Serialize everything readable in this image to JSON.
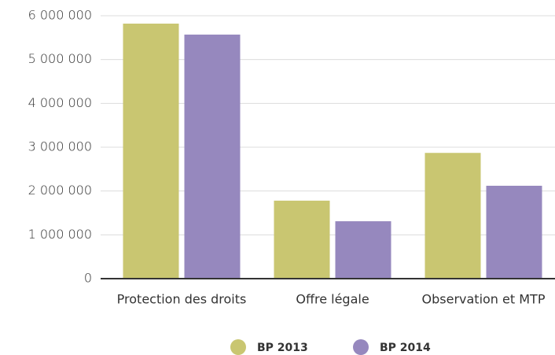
{
  "chart_data": {
    "type": "bar",
    "categories": [
      "Protection des droits",
      "Offre légale",
      "Observation et MTP"
    ],
    "series": [
      {
        "name": "BP 2013",
        "color": "#c9c671",
        "values": [
          5820000,
          1780000,
          2870000
        ]
      },
      {
        "name": "BP 2014",
        "color": "#9688be",
        "values": [
          5570000,
          1310000,
          2120000
        ]
      }
    ],
    "ylim": [
      0,
      6000000
    ],
    "yticks": [
      0,
      {
        "value": 1000000,
        "label": "1 000 000"
      },
      {
        "value": 2000000,
        "label": "2 000 000"
      },
      {
        "value": 3000000,
        "label": "3 000 000"
      },
      {
        "value": 4000000,
        "label": "4 000 000"
      },
      {
        "value": 5000000,
        "label": "5 000 000"
      },
      {
        "value": 6000000,
        "label": "6 000 000"
      }
    ],
    "grid": true
  }
}
